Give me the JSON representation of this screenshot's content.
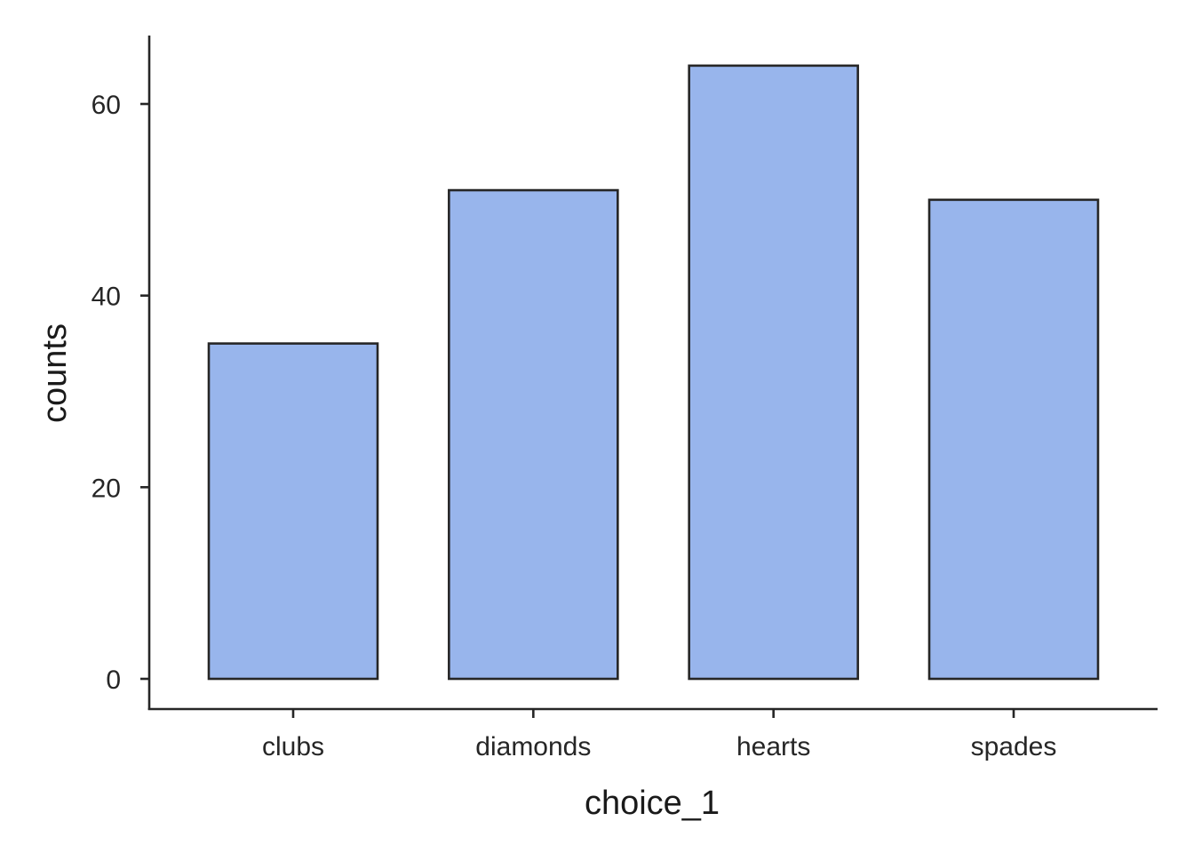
{
  "chart_data": {
    "type": "bar",
    "title": "",
    "xlabel": "choice_1",
    "ylabel": "counts",
    "categories": [
      "clubs",
      "diamonds",
      "hearts",
      "spades"
    ],
    "values": [
      35,
      51,
      64,
      50
    ],
    "ylim": [
      0,
      67
    ],
    "yticks": [
      0,
      20,
      40,
      60
    ],
    "grid": false,
    "legend": "none",
    "bar_color": "#98b5ec",
    "edge_color": "#262626"
  }
}
